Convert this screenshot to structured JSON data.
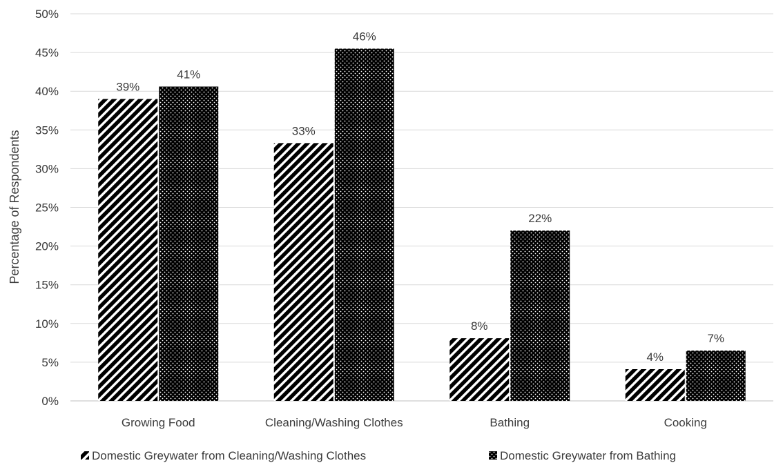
{
  "chart_data": {
    "type": "bar",
    "title": "",
    "xlabel": "",
    "ylabel": "Percentage of Respondents",
    "ylim": [
      0,
      50
    ],
    "yticks": [
      "0%",
      "5%",
      "10%",
      "15%",
      "20%",
      "25%",
      "30%",
      "35%",
      "40%",
      "45%",
      "50%"
    ],
    "categories": [
      "Growing Food",
      "Cleaning/Washing Clothes",
      "Bathing",
      "Cooking"
    ],
    "series": [
      {
        "name": "Domestic Greywater from Cleaning/Washing Clothes",
        "values": [
          39,
          33.3,
          8.1,
          4.1
        ],
        "labels": [
          "39%",
          "33%",
          "8%",
          "4%"
        ],
        "pattern": "diagonal-stripes",
        "color": "#000000"
      },
      {
        "name": "Domestic Greywater from Bathing",
        "values": [
          40.6,
          45.5,
          22,
          6.5
        ],
        "labels": [
          "41%",
          "46%",
          "22%",
          "7%"
        ],
        "pattern": "dotted",
        "color": "#000000"
      }
    ],
    "grid": true,
    "legend_position": "bottom"
  }
}
